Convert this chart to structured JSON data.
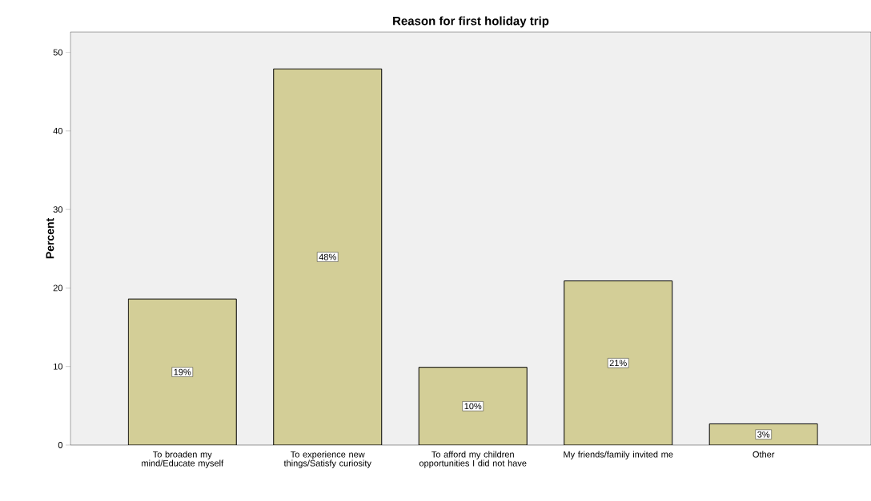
{
  "chart_data": {
    "type": "bar",
    "title": "Reason for first holiday trip",
    "ylabel": "Percent",
    "categories": [
      "To broaden my mind/Educate myself",
      "To experience new things/Satisfy curiosity",
      "To afford my children opportunities I did not have",
      "My friends/family invited me",
      "Other"
    ],
    "values": [
      18.6,
      47.9,
      9.9,
      20.9,
      2.7
    ],
    "value_labels": [
      "19%",
      "48%",
      "10%",
      "21%",
      "3%"
    ],
    "color": "#d3ce97",
    "ylim": [
      0,
      52.6
    ],
    "yticks": [
      0,
      10,
      20,
      30,
      40,
      50
    ]
  }
}
